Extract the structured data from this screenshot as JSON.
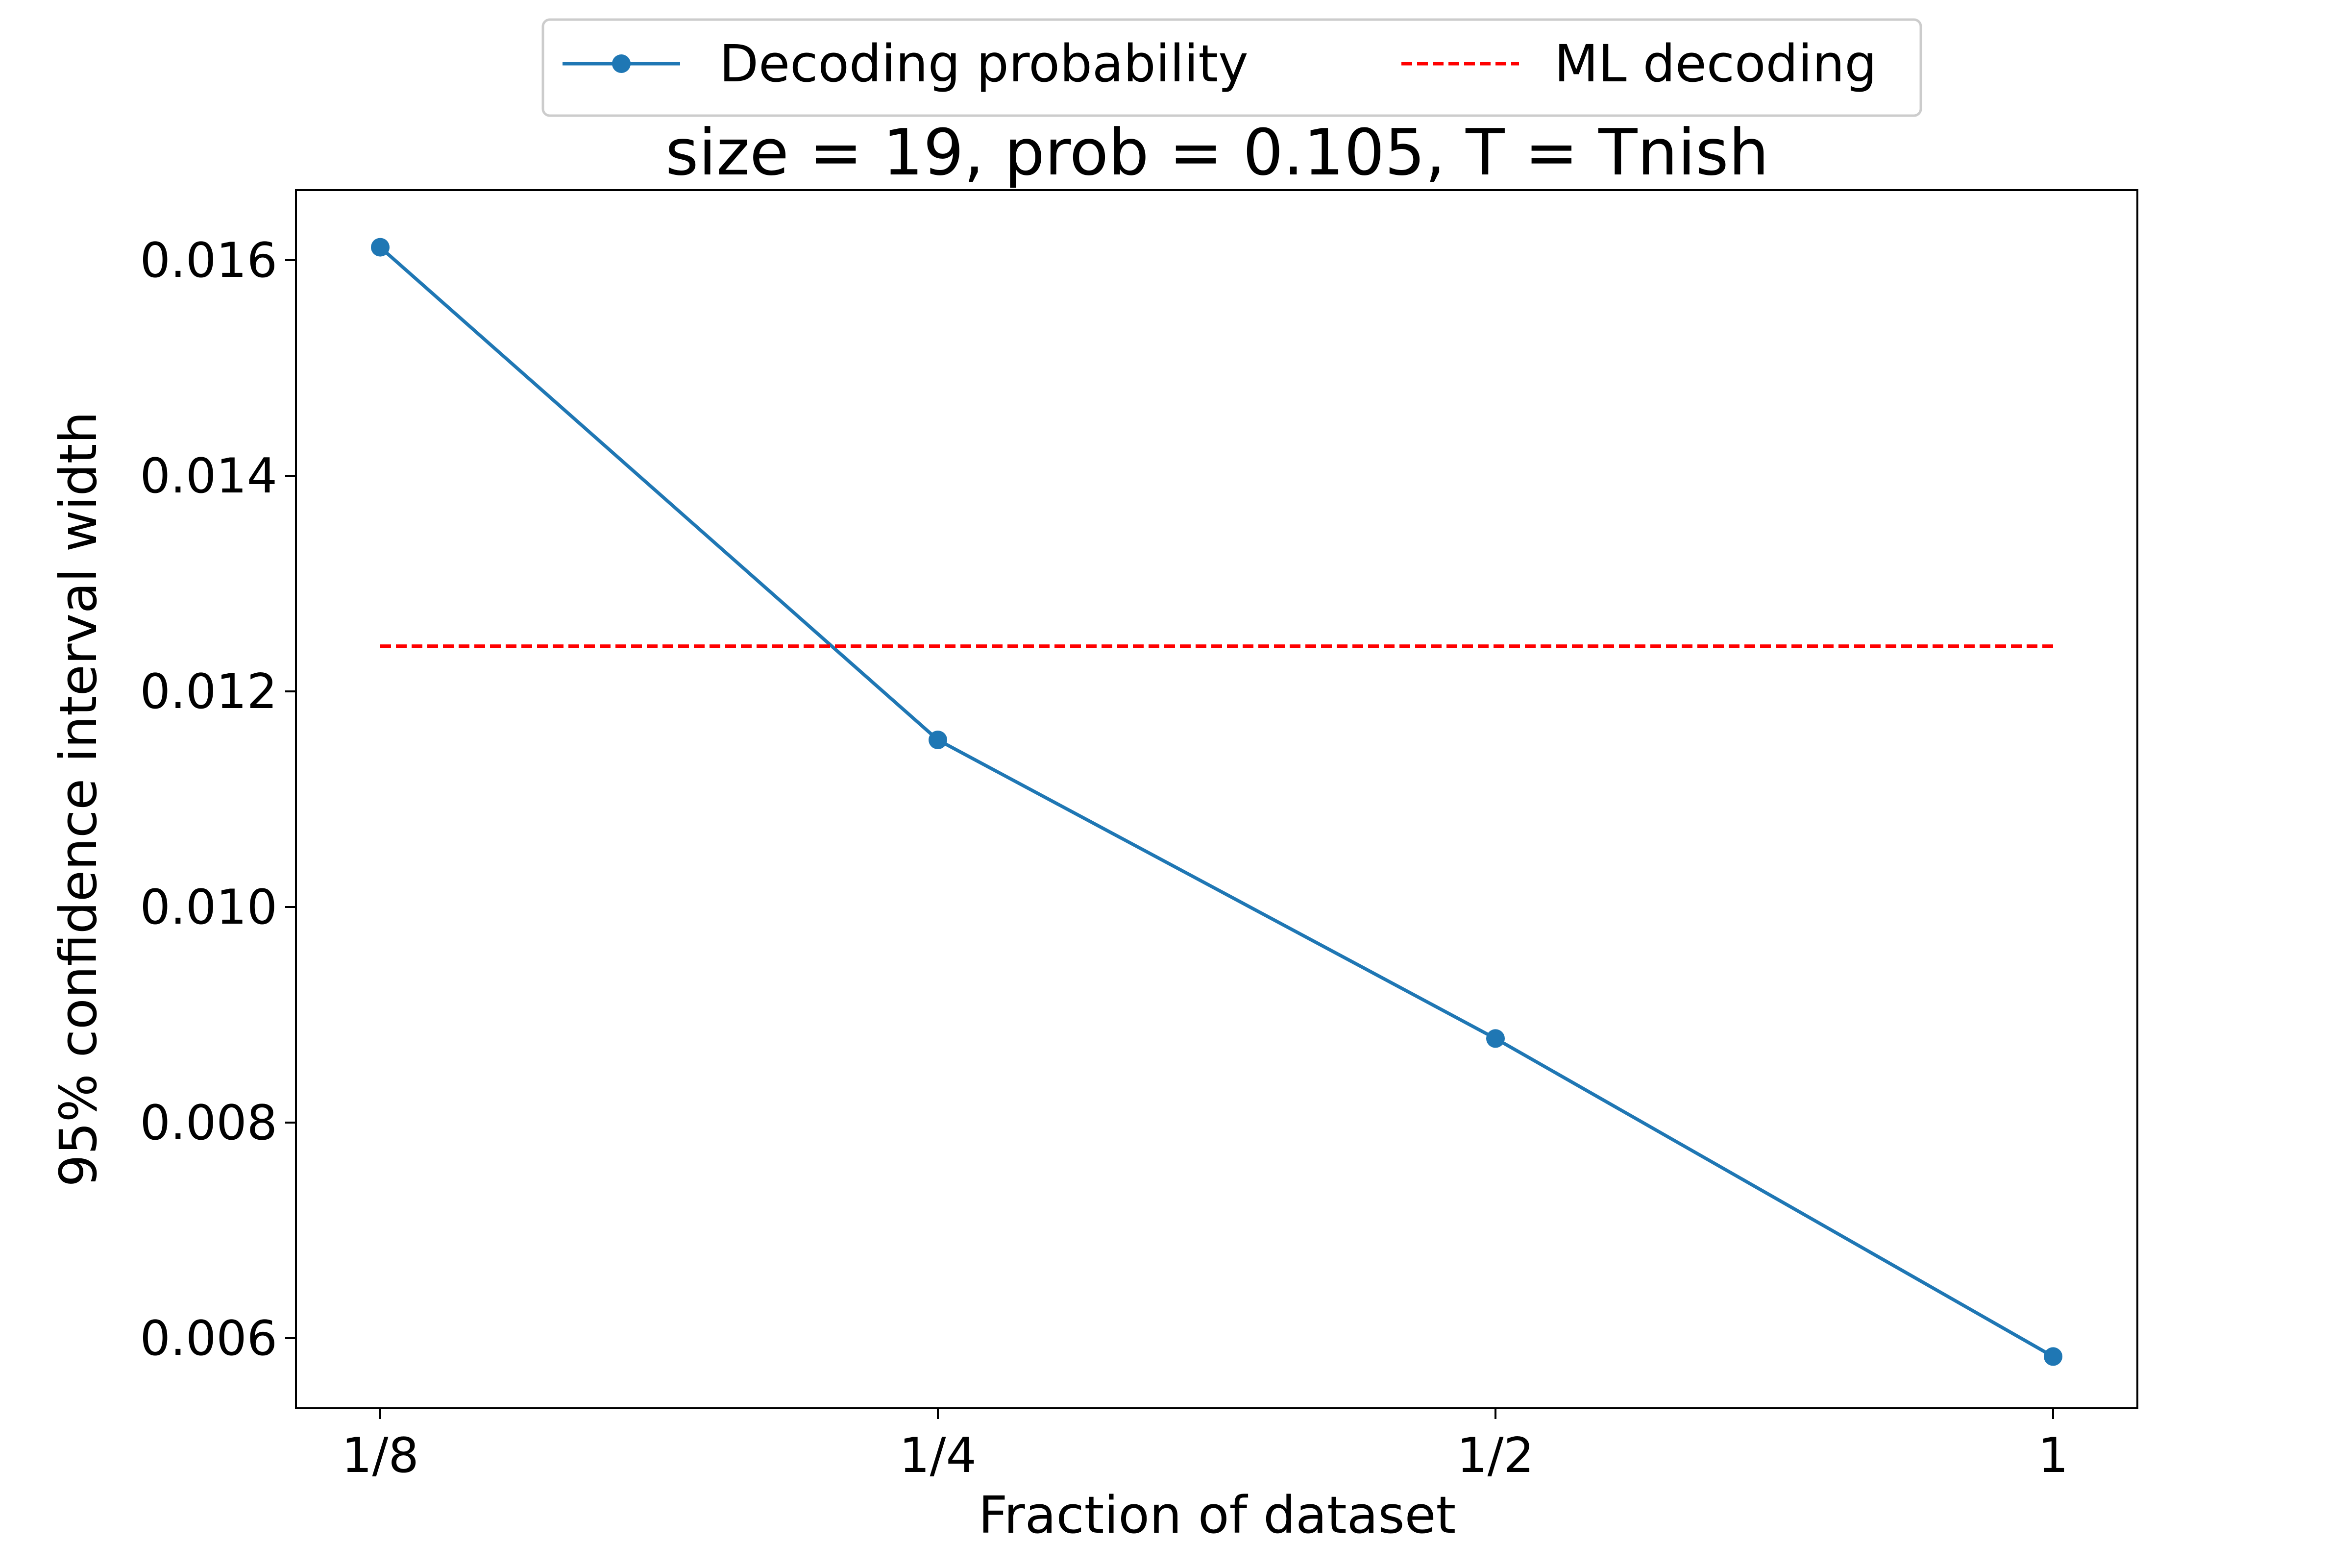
{
  "chart_data": {
    "type": "line",
    "title": "size = 19, prob = 0.105, T = Tnish",
    "xlabel": "Fraction of dataset",
    "ylabel": "95% confidence interval width",
    "categories": [
      "1/8",
      "1/4",
      "1/2",
      "1"
    ],
    "series": [
      {
        "name": "Decoding probability",
        "values": [
          0.01612,
          0.01155,
          0.00878,
          0.00583
        ],
        "color": "#1f77b4",
        "style": "solid",
        "marker": "circle"
      },
      {
        "name": "ML decoding",
        "values": [
          0.01242,
          0.01242,
          0.01242,
          0.01242
        ],
        "color": "#ff0000",
        "style": "dashed",
        "marker": "none"
      }
    ],
    "ylim": [
      0.00535,
      0.01665
    ],
    "yticks": [
      0.006,
      0.008,
      0.01,
      0.012,
      0.014,
      0.016
    ],
    "ytick_labels": [
      "0.006",
      "0.008",
      "0.010",
      "0.012",
      "0.014",
      "0.016"
    ],
    "grid": false,
    "legend": "top-center, above the title"
  }
}
